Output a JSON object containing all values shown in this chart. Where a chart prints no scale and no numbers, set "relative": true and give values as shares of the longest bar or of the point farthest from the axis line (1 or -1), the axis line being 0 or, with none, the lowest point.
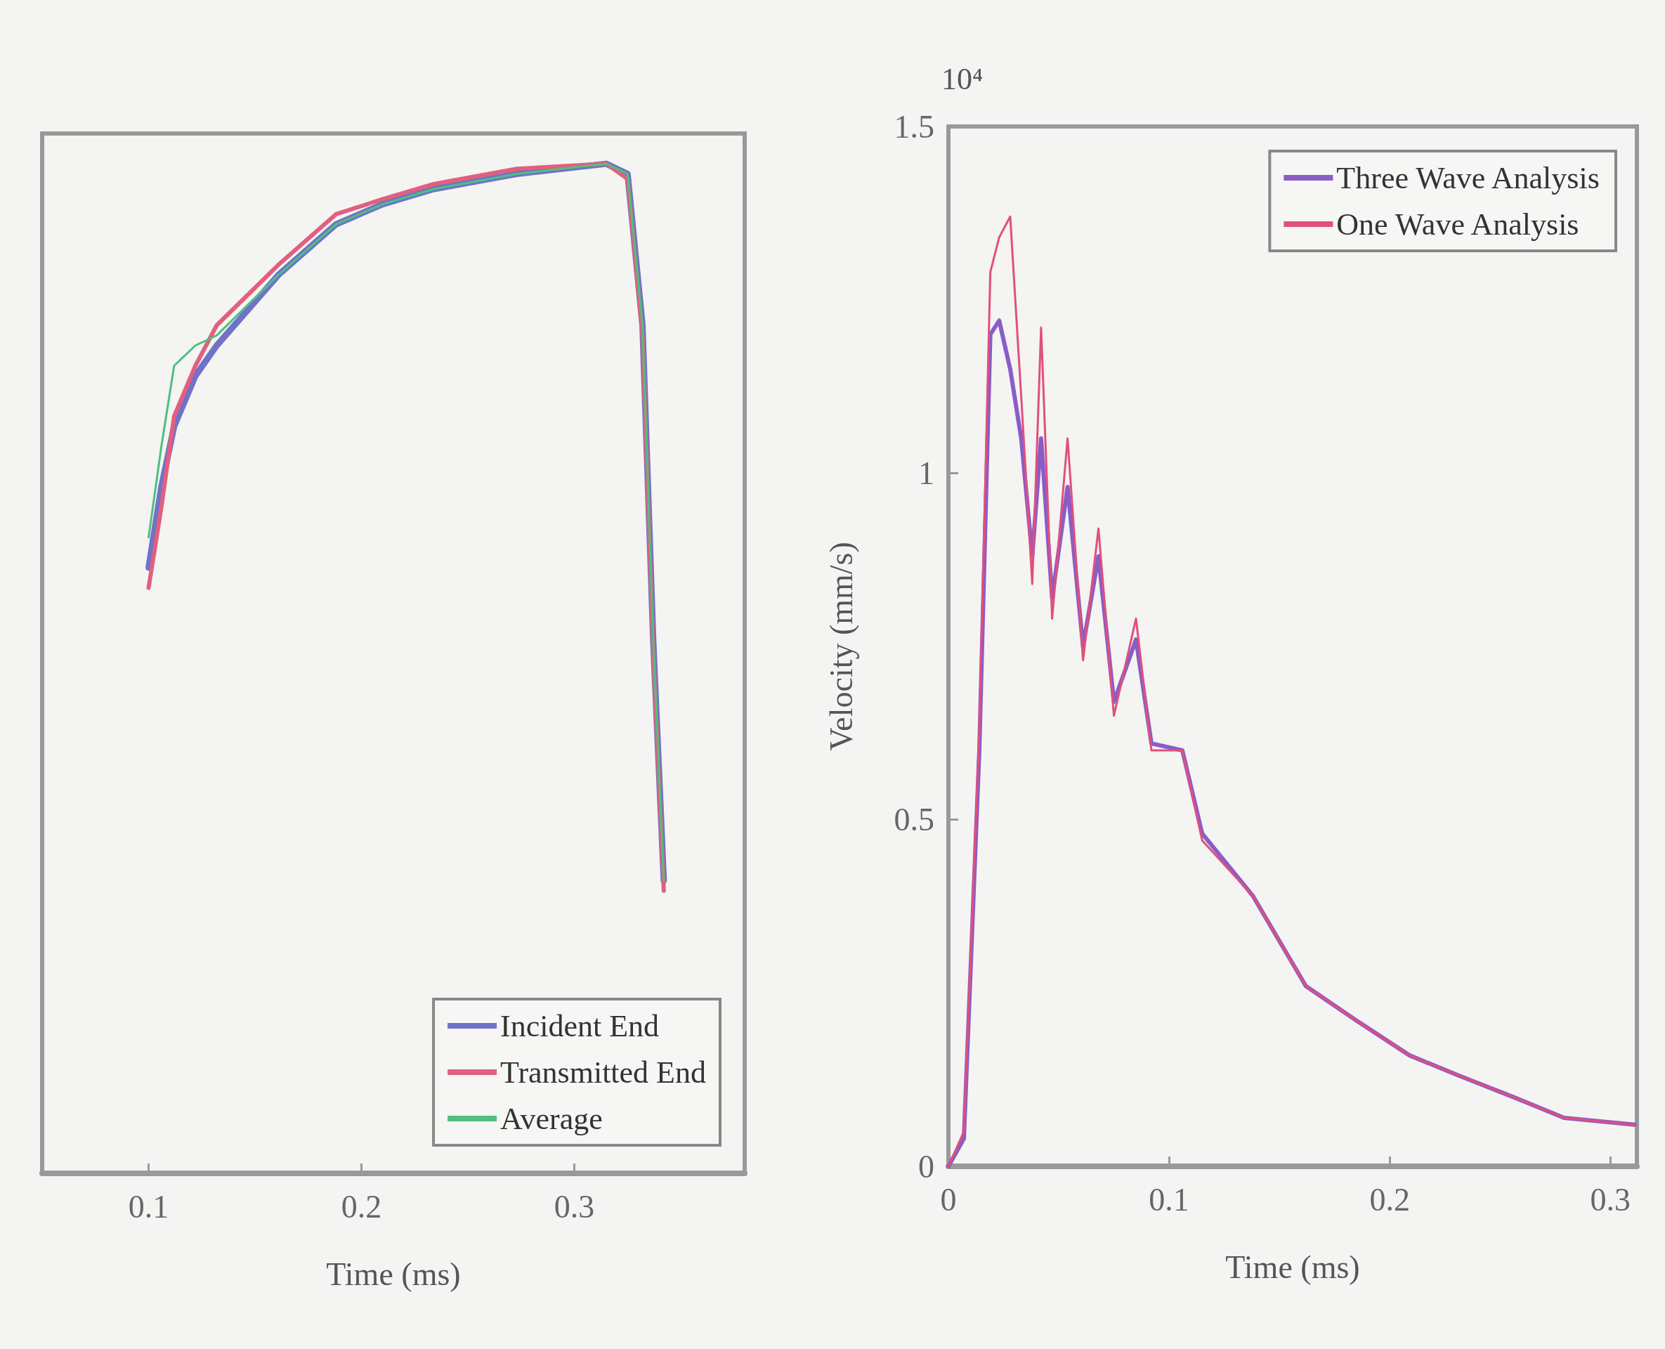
{
  "chart_data": [
    {
      "type": "line",
      "relative": true,
      "xlabel": "Time (ms)",
      "xlim": [
        0.05,
        0.38
      ],
      "xticks": [
        0.1,
        0.2,
        0.3
      ],
      "tick_labels": "x",
      "legend": "bottom right",
      "grid": false,
      "marker": "none",
      "line_style": "solid",
      "series": [
        {
          "name": "Incident End",
          "color": "#6f73c8",
          "x": [
            0.1,
            0.106,
            0.112,
            0.122,
            0.132,
            0.161,
            0.188,
            0.21,
            0.234,
            0.273,
            0.315,
            0.325,
            0.332,
            0.337,
            0.342
          ],
          "values": [
            0.6,
            0.68,
            0.74,
            0.79,
            0.82,
            0.89,
            0.94,
            0.96,
            0.975,
            0.99,
            1,
            0.99,
            0.84,
            0.53,
            0.29
          ]
        },
        {
          "name": "Transmitted End",
          "color": "#e0607e",
          "x": [
            0.1,
            0.106,
            0.112,
            0.122,
            0.132,
            0.161,
            0.188,
            0.21,
            0.234,
            0.273,
            0.315,
            0.325,
            0.332,
            0.337,
            0.342
          ],
          "values": [
            0.58,
            0.66,
            0.75,
            0.8,
            0.84,
            0.9,
            0.95,
            0.965,
            0.98,
            0.995,
            1,
            0.985,
            0.83,
            0.52,
            0.28
          ]
        },
        {
          "name": "Average",
          "color": "#4fbf80",
          "x": [
            0.1,
            0.106,
            0.112,
            0.122,
            0.132,
            0.161,
            0.188,
            0.21,
            0.234,
            0.273,
            0.315,
            0.325,
            0.332,
            0.337,
            0.342
          ],
          "values": [
            0.63,
            0.72,
            0.8,
            0.82,
            0.83,
            0.89,
            0.94,
            0.96,
            0.975,
            0.99,
            1,
            0.99,
            0.84,
            0.53,
            0.29
          ]
        }
      ]
    },
    {
      "type": "line",
      "xlabel": "Time (ms)",
      "ylabel": "Velocity (mm/s)",
      "annotations": [
        "10⁴"
      ],
      "xlim": [
        0,
        0.312
      ],
      "xticks": [
        0,
        0.1,
        0.2,
        0.3
      ],
      "ylim": [
        0,
        1.5
      ],
      "yticks": [
        0,
        0.5,
        1,
        1.5
      ],
      "legend": "top right",
      "grid": false,
      "marker": "none",
      "line_style": "solid",
      "series": [
        {
          "name": "Three Wave Analysis",
          "color": "#8a5cc8",
          "x": [
            0,
            0.007,
            0.014,
            0.019,
            0.023,
            0.028,
            0.033,
            0.038,
            0.042,
            0.047,
            0.054,
            0.061,
            0.068,
            0.075,
            0.085,
            0.092,
            0.106,
            0.115,
            0.138,
            0.162,
            0.185,
            0.209,
            0.232,
            0.256,
            0.279,
            0.311
          ],
          "values": [
            0,
            0.04,
            0.6,
            1.2,
            1.22,
            1.15,
            1.05,
            0.88,
            1.05,
            0.82,
            0.98,
            0.75,
            0.88,
            0.67,
            0.76,
            0.61,
            0.6,
            0.48,
            0.39,
            0.26,
            0.21,
            0.16,
            0.13,
            0.1,
            0.07,
            0.06
          ]
        },
        {
          "name": "One Wave Analysis",
          "color": "#e0507a",
          "x": [
            0,
            0.007,
            0.014,
            0.019,
            0.023,
            0.028,
            0.033,
            0.038,
            0.042,
            0.047,
            0.054,
            0.061,
            0.068,
            0.075,
            0.085,
            0.092,
            0.106,
            0.115,
            0.138,
            0.162,
            0.185,
            0.209,
            0.232,
            0.256,
            0.279,
            0.311
          ],
          "values": [
            0,
            0.05,
            0.63,
            1.29,
            1.34,
            1.37,
            1.11,
            0.84,
            1.21,
            0.79,
            1.05,
            0.73,
            0.92,
            0.65,
            0.79,
            0.6,
            0.6,
            0.47,
            0.39,
            0.26,
            0.21,
            0.16,
            0.13,
            0.1,
            0.07,
            0.06
          ]
        }
      ]
    }
  ]
}
